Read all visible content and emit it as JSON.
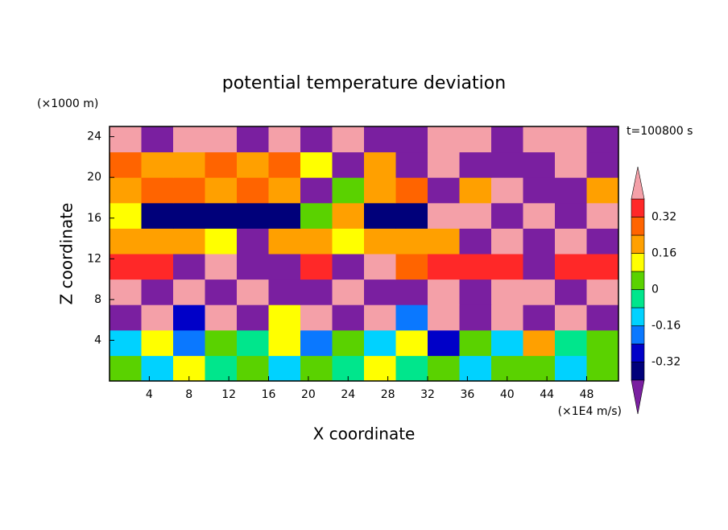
{
  "chart_data": {
    "type": "contour",
    "title": "potential temperature deviation",
    "y_unit": "(×1000 m)",
    "x_unit": "(×1E4 m/s)",
    "annotation": "t=100800 s",
    "xlabel": "X coordinate",
    "ylabel": "Z coordinate",
    "xlim": [
      0,
      51.2
    ],
    "ylim": [
      0,
      25
    ],
    "xticks": [
      4,
      8,
      12,
      16,
      20,
      24,
      28,
      32,
      36,
      40,
      44,
      48
    ],
    "yticks": [
      4,
      8,
      12,
      16,
      20,
      24
    ],
    "x_edges": [
      0,
      3.2,
      6.4,
      9.6,
      12.8,
      16,
      19.2,
      22.4,
      25.6,
      28.8,
      32,
      35.2,
      38.4,
      41.6,
      44.8,
      48,
      51.2
    ],
    "y_edges": [
      0,
      2.5,
      5,
      7.5,
      10,
      12.5,
      15,
      17.5,
      20,
      22.5,
      25
    ],
    "z": [
      [
        0.05,
        -0.1,
        0.1,
        -0.05,
        0.02,
        -0.12,
        0.06,
        -0.02,
        0.1,
        -0.08,
        0.03,
        -0.15,
        0.05,
        0.0,
        -0.1,
        0.06
      ],
      [
        -0.1,
        0.08,
        -0.2,
        0.05,
        -0.06,
        0.12,
        -0.18,
        0.04,
        -0.1,
        0.15,
        -0.25,
        0.05,
        -0.1,
        0.2,
        -0.06,
        0.02
      ],
      [
        -0.45,
        0.45,
        -0.3,
        0.45,
        -0.45,
        0.1,
        0.45,
        -0.45,
        0.45,
        -0.2,
        0.45,
        -0.45,
        0.45,
        -0.45,
        0.45,
        -0.45
      ],
      [
        0.45,
        -0.45,
        0.45,
        -0.45,
        0.45,
        -0.45,
        -0.45,
        0.45,
        -0.45,
        -0.45,
        0.45,
        -0.45,
        0.45,
        0.45,
        -0.45,
        0.45
      ],
      [
        0.36,
        0.36,
        -0.45,
        0.45,
        -0.45,
        -0.45,
        0.36,
        -0.45,
        0.45,
        0.3,
        0.36,
        0.36,
        0.36,
        -0.45,
        0.36,
        0.36
      ],
      [
        0.2,
        0.2,
        0.2,
        0.12,
        -0.45,
        0.2,
        0.2,
        0.12,
        0.2,
        0.2,
        0.2,
        -0.45,
        0.45,
        -0.45,
        0.45,
        -0.45
      ],
      [
        0.12,
        -0.36,
        -0.36,
        -0.36,
        -0.36,
        -0.36,
        0.05,
        0.2,
        -0.36,
        -0.36,
        0.45,
        0.45,
        -0.45,
        0.45,
        -0.45,
        0.45
      ],
      [
        0.2,
        0.28,
        0.28,
        0.2,
        0.28,
        0.2,
        -0.45,
        0.05,
        0.2,
        0.28,
        -0.45,
        0.2,
        0.45,
        -0.45,
        -0.45,
        0.2
      ],
      [
        0.28,
        0.2,
        0.2,
        0.28,
        0.2,
        0.28,
        0.12,
        -0.45,
        0.2,
        -0.45,
        0.45,
        -0.45,
        -0.45,
        -0.45,
        0.45,
        -0.45
      ],
      [
        0.45,
        -0.45,
        0.45,
        0.45,
        -0.45,
        0.45,
        -0.45,
        0.45,
        -0.45,
        -0.45,
        0.45,
        0.45,
        -0.45,
        0.45,
        0.45,
        -0.45
      ]
    ],
    "levels": [
      -0.4,
      -0.32,
      -0.24,
      -0.16,
      -0.08,
      0,
      0.08,
      0.16,
      0.24,
      0.32,
      0.4
    ],
    "colors": [
      "#7a1fa0",
      "#00007a",
      "#0000c8",
      "#0a78ff",
      "#00d2ff",
      "#00e68c",
      "#5ad200",
      "#ffff00",
      "#ffa000",
      "#ff6400",
      "#ff2828",
      "#f4a0a8"
    ],
    "colorbar_ticks": [
      0.32,
      0.16,
      0,
      -0.16,
      -0.32
    ]
  }
}
